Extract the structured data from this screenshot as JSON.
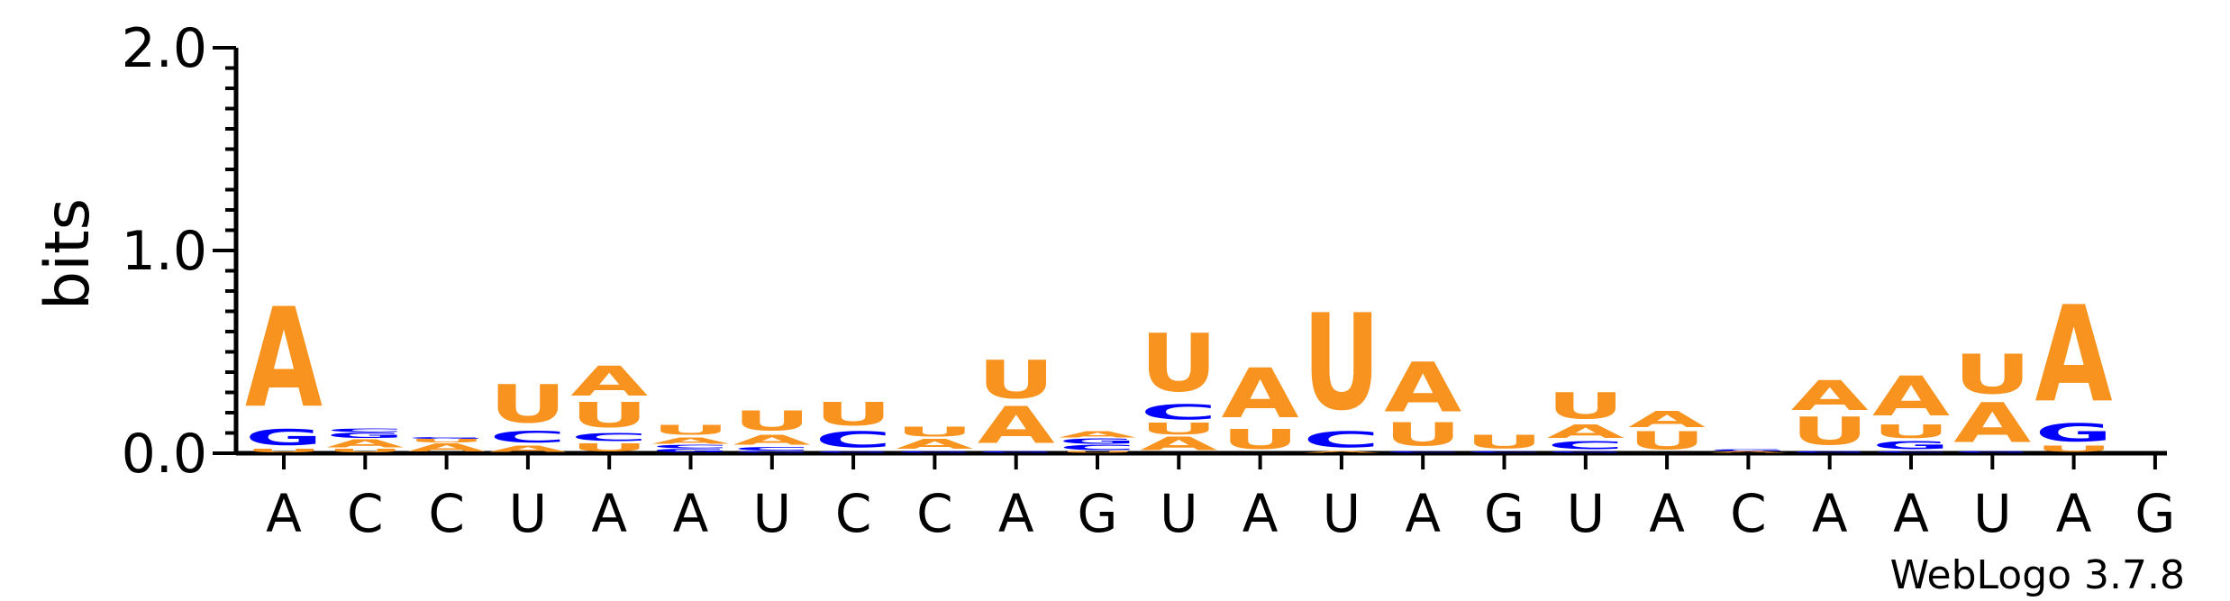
{
  "chart_data": {
    "type": "sequence-logo",
    "ylabel": "bits",
    "ylim": [
      0,
      2.0
    ],
    "yticks": [
      "0.0",
      "1.0",
      "2.0"
    ],
    "credit": "WebLogo 3.7.8",
    "colors": {
      "A": "#f7931e",
      "U": "#f7931e",
      "C": "#0000ff",
      "G": "#0000ff"
    },
    "positions": [
      {
        "label": "A",
        "stack": [
          [
            "U",
            0.02
          ],
          [
            "G",
            0.1
          ],
          [
            "A",
            0.6
          ]
        ]
      },
      {
        "label": "C",
        "stack": [
          [
            "U",
            0.02
          ],
          [
            "A",
            0.05
          ],
          [
            "G",
            0.03
          ],
          [
            "C",
            0.02
          ]
        ]
      },
      {
        "label": "C",
        "stack": [
          [
            "A",
            0.05
          ],
          [
            "U",
            0.02
          ],
          [
            "G",
            0.01
          ]
        ]
      },
      {
        "label": "U",
        "stack": [
          [
            "A",
            0.04
          ],
          [
            "C",
            0.07
          ],
          [
            "U",
            0.23
          ]
        ]
      },
      {
        "label": "A",
        "stack": [
          [
            "U",
            0.05
          ],
          [
            "C",
            0.05
          ],
          [
            "U",
            0.15
          ],
          [
            "A",
            0.18
          ]
        ]
      },
      {
        "label": "A",
        "stack": [
          [
            "G",
            0.02
          ],
          [
            "C",
            0.02
          ],
          [
            "A",
            0.04
          ],
          [
            "U",
            0.06
          ]
        ]
      },
      {
        "label": "U",
        "stack": [
          [
            "G",
            0.01
          ],
          [
            "C",
            0.02
          ],
          [
            "A",
            0.06
          ],
          [
            "U",
            0.12
          ]
        ]
      },
      {
        "label": "C",
        "stack": [
          [
            "G",
            0.01
          ],
          [
            "C",
            0.1
          ],
          [
            "U",
            0.14
          ]
        ]
      },
      {
        "label": "C",
        "stack": [
          [
            "G",
            0.01
          ],
          [
            "A",
            0.06
          ],
          [
            "U",
            0.06
          ]
        ]
      },
      {
        "label": "A",
        "stack": [
          [
            "G",
            0.01
          ],
          [
            "A",
            0.22
          ],
          [
            "U",
            0.23
          ]
        ]
      },
      {
        "label": "G",
        "stack": [
          [
            "U",
            0.01
          ],
          [
            "C",
            0.03
          ],
          [
            "G",
            0.03
          ],
          [
            "A",
            0.04
          ]
        ]
      },
      {
        "label": "U",
        "stack": [
          [
            "A",
            0.08
          ],
          [
            "U",
            0.07
          ],
          [
            "C",
            0.09
          ],
          [
            "U",
            0.35
          ]
        ]
      },
      {
        "label": "A",
        "stack": [
          [
            "U",
            0.12
          ],
          [
            "A",
            0.3
          ]
        ]
      },
      {
        "label": "U",
        "stack": [
          [
            "A",
            0.01
          ],
          [
            "C",
            0.1
          ],
          [
            "U",
            0.58
          ]
        ]
      },
      {
        "label": "A",
        "stack": [
          [
            "C",
            0.01
          ],
          [
            "U",
            0.14
          ],
          [
            "A",
            0.3
          ]
        ]
      },
      {
        "label": "G",
        "stack": [
          [
            "C",
            0.01
          ],
          [
            "U",
            0.08
          ]
        ]
      },
      {
        "label": "U",
        "stack": [
          [
            "G",
            0.01
          ],
          [
            "C",
            0.05
          ],
          [
            "A",
            0.08
          ],
          [
            "U",
            0.16
          ]
        ]
      },
      {
        "label": "A",
        "stack": [
          [
            "U",
            0.11
          ],
          [
            "A",
            0.1
          ]
        ]
      },
      {
        "label": "C",
        "stack": [
          [
            "A",
            0.01
          ],
          [
            "G",
            0.01
          ]
        ]
      },
      {
        "label": "A",
        "stack": [
          [
            "G",
            0.01
          ],
          [
            "U",
            0.17
          ],
          [
            "A",
            0.18
          ]
        ]
      },
      {
        "label": "A",
        "stack": [
          [
            "C",
            0.01
          ],
          [
            "G",
            0.05
          ],
          [
            "U",
            0.08
          ],
          [
            "A",
            0.24
          ]
        ]
      },
      {
        "label": "U",
        "stack": [
          [
            "G",
            0.01
          ],
          [
            "A",
            0.24
          ],
          [
            "U",
            0.24
          ]
        ]
      },
      {
        "label": "A",
        "stack": [
          [
            "U",
            0.04
          ],
          [
            "G",
            0.11
          ],
          [
            "A",
            0.58
          ]
        ]
      },
      {
        "label": "G",
        "stack": []
      }
    ]
  }
}
